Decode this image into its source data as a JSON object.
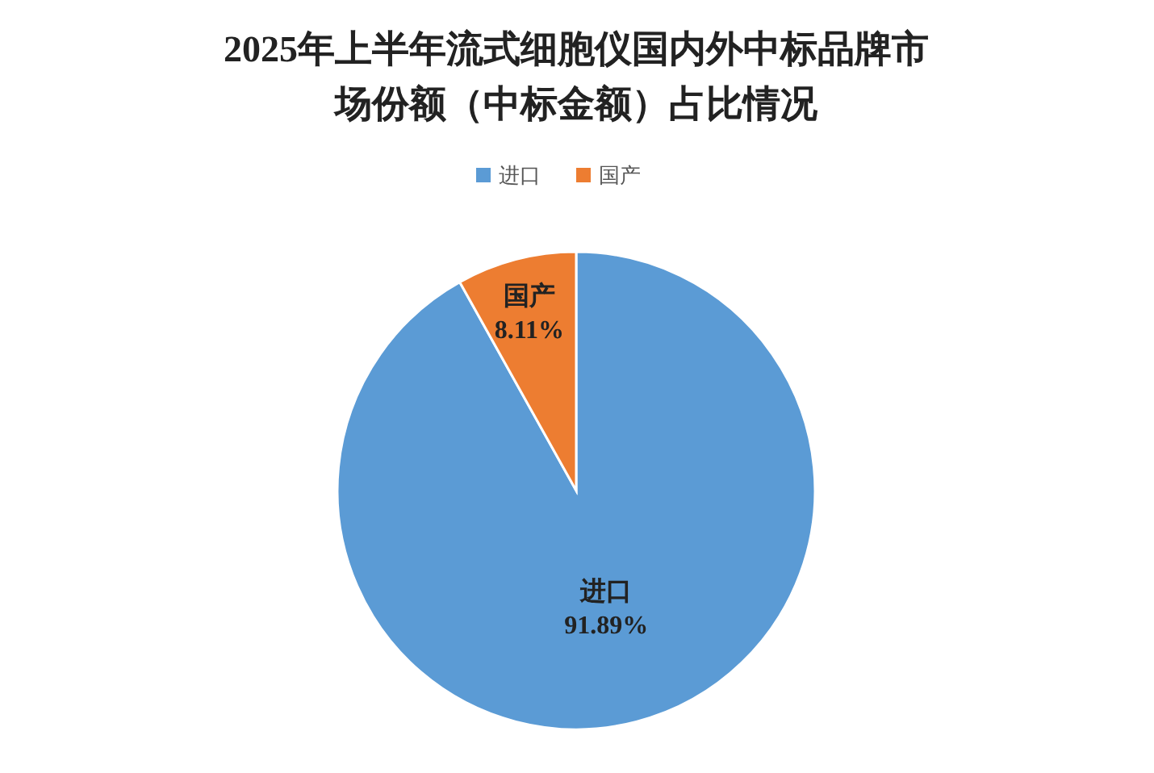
{
  "chart_data": {
    "type": "pie",
    "title": "2025年上半年流式细胞仪国内外中标品牌市场份额（中标金额）占比情况",
    "categories": [
      "进口",
      "国产"
    ],
    "values": [
      91.89,
      8.11
    ],
    "colors": [
      "#5b9bd5",
      "#ed7d31"
    ],
    "value_labels": [
      "91.89%",
      "8.11%"
    ],
    "legend": "top"
  }
}
